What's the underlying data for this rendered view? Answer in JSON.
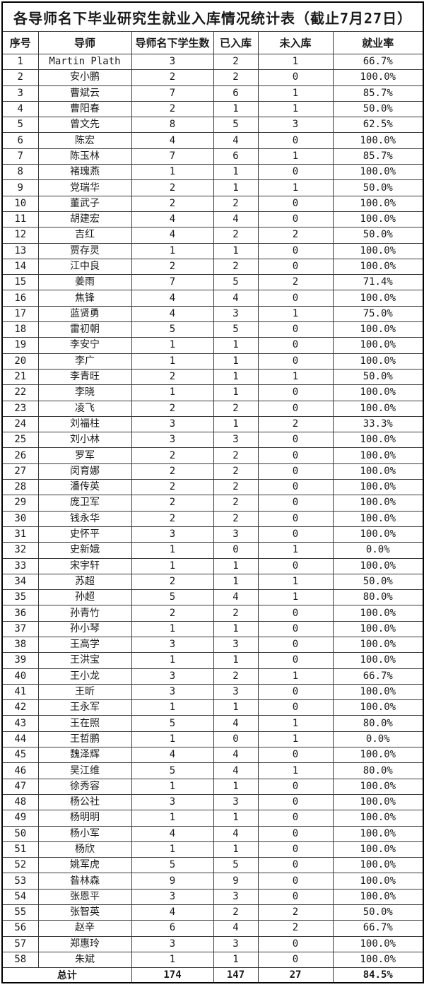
{
  "table": {
    "title": "各导师名下毕业研究生就业入库情况统计表（截止7月27日）",
    "headers": [
      "序号",
      "导师",
      "导师名下学生数",
      "已入库",
      "未入库",
      "就业率"
    ],
    "rows": [
      [
        "1",
        "Martin Plath",
        "3",
        "2",
        "1",
        "66.7%"
      ],
      [
        "2",
        "安小鹏",
        "2",
        "2",
        "0",
        "100.0%"
      ],
      [
        "3",
        "曹斌云",
        "7",
        "6",
        "1",
        "85.7%"
      ],
      [
        "4",
        "曹阳春",
        "2",
        "1",
        "1",
        "50.0%"
      ],
      [
        "5",
        "曾文先",
        "8",
        "5",
        "3",
        "62.5%"
      ],
      [
        "6",
        "陈宏",
        "4",
        "4",
        "0",
        "100.0%"
      ],
      [
        "7",
        "陈玉林",
        "7",
        "6",
        "1",
        "85.7%"
      ],
      [
        "8",
        "褚瑰燕",
        "1",
        "1",
        "0",
        "100.0%"
      ],
      [
        "9",
        "党瑞华",
        "2",
        "1",
        "1",
        "50.0%"
      ],
      [
        "10",
        "董武子",
        "2",
        "2",
        "0",
        "100.0%"
      ],
      [
        "11",
        "胡建宏",
        "4",
        "4",
        "0",
        "100.0%"
      ],
      [
        "12",
        "吉红",
        "4",
        "2",
        "2",
        "50.0%"
      ],
      [
        "13",
        "贾存灵",
        "1",
        "1",
        "0",
        "100.0%"
      ],
      [
        "14",
        "江中良",
        "2",
        "2",
        "0",
        "100.0%"
      ],
      [
        "15",
        "姜雨",
        "7",
        "5",
        "2",
        "71.4%"
      ],
      [
        "16",
        "焦锋",
        "4",
        "4",
        "0",
        "100.0%"
      ],
      [
        "17",
        "蓝贤勇",
        "4",
        "3",
        "1",
        "75.0%"
      ],
      [
        "18",
        "雷初朝",
        "5",
        "5",
        "0",
        "100.0%"
      ],
      [
        "19",
        "李安宁",
        "1",
        "1",
        "0",
        "100.0%"
      ],
      [
        "20",
        "李广",
        "1",
        "1",
        "0",
        "100.0%"
      ],
      [
        "21",
        "李青旺",
        "2",
        "1",
        "1",
        "50.0%"
      ],
      [
        "22",
        "李晓",
        "1",
        "1",
        "0",
        "100.0%"
      ],
      [
        "23",
        "凌飞",
        "2",
        "2",
        "0",
        "100.0%"
      ],
      [
        "24",
        "刘福柱",
        "3",
        "1",
        "2",
        "33.3%"
      ],
      [
        "25",
        "刘小林",
        "3",
        "3",
        "0",
        "100.0%"
      ],
      [
        "26",
        "罗军",
        "2",
        "2",
        "0",
        "100.0%"
      ],
      [
        "27",
        "闵育娜",
        "2",
        "2",
        "0",
        "100.0%"
      ],
      [
        "28",
        "潘传英",
        "2",
        "2",
        "0",
        "100.0%"
      ],
      [
        "29",
        "庞卫军",
        "2",
        "2",
        "0",
        "100.0%"
      ],
      [
        "30",
        "钱永华",
        "2",
        "2",
        "0",
        "100.0%"
      ],
      [
        "31",
        "史怀平",
        "3",
        "3",
        "0",
        "100.0%"
      ],
      [
        "32",
        "史新娥",
        "1",
        "0",
        "1",
        "0.0%"
      ],
      [
        "33",
        "宋宇轩",
        "1",
        "1",
        "0",
        "100.0%"
      ],
      [
        "34",
        "苏超",
        "2",
        "1",
        "1",
        "50.0%"
      ],
      [
        "35",
        "孙超",
        "5",
        "4",
        "1",
        "80.0%"
      ],
      [
        "36",
        "孙青竹",
        "2",
        "2",
        "0",
        "100.0%"
      ],
      [
        "37",
        "孙小琴",
        "1",
        "1",
        "0",
        "100.0%"
      ],
      [
        "38",
        "王高学",
        "3",
        "3",
        "0",
        "100.0%"
      ],
      [
        "39",
        "王洪宝",
        "1",
        "1",
        "0",
        "100.0%"
      ],
      [
        "40",
        "王小龙",
        "3",
        "2",
        "1",
        "66.7%"
      ],
      [
        "41",
        "王昕",
        "3",
        "3",
        "0",
        "100.0%"
      ],
      [
        "42",
        "王永军",
        "1",
        "1",
        "0",
        "100.0%"
      ],
      [
        "43",
        "王在照",
        "5",
        "4",
        "1",
        "80.0%"
      ],
      [
        "44",
        "王哲鹏",
        "1",
        "0",
        "1",
        "0.0%"
      ],
      [
        "45",
        "魏泽辉",
        "4",
        "4",
        "0",
        "100.0%"
      ],
      [
        "46",
        "吴江维",
        "5",
        "4",
        "1",
        "80.0%"
      ],
      [
        "47",
        "徐秀容",
        "1",
        "1",
        "0",
        "100.0%"
      ],
      [
        "48",
        "杨公社",
        "3",
        "3",
        "0",
        "100.0%"
      ],
      [
        "49",
        "杨明明",
        "1",
        "1",
        "0",
        "100.0%"
      ],
      [
        "50",
        "杨小军",
        "4",
        "4",
        "0",
        "100.0%"
      ],
      [
        "51",
        "杨欣",
        "1",
        "1",
        "0",
        "100.0%"
      ],
      [
        "52",
        "姚军虎",
        "5",
        "5",
        "0",
        "100.0%"
      ],
      [
        "53",
        "昝林森",
        "9",
        "9",
        "0",
        "100.0%"
      ],
      [
        "54",
        "张恩平",
        "3",
        "3",
        "0",
        "100.0%"
      ],
      [
        "55",
        "张智英",
        "4",
        "2",
        "2",
        "50.0%"
      ],
      [
        "56",
        "赵辛",
        "6",
        "4",
        "2",
        "66.7%"
      ],
      [
        "57",
        "郑惠玲",
        "3",
        "3",
        "0",
        "100.0%"
      ],
      [
        "58",
        "朱斌",
        "1",
        "1",
        "0",
        "100.0%"
      ]
    ],
    "total": {
      "label": "总计",
      "students": "174",
      "entered": "147",
      "not_entered": "27",
      "rate": "84.5%"
    }
  }
}
